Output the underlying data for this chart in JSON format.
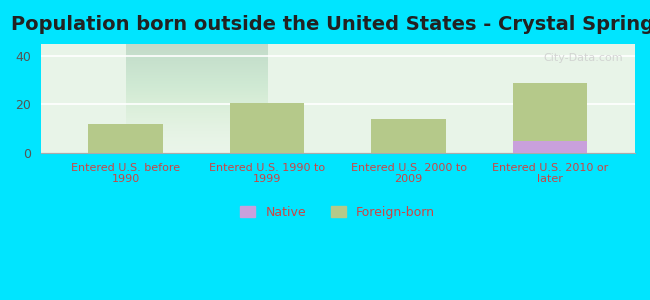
{
  "title": "Population born outside the United States - Crystal Springs",
  "categories": [
    "Entered U.S. before\n1990",
    "Entered U.S. 1990 to\n1999",
    "Entered U.S. 2000 to\n2009",
    "Entered U.S. 2010 or\nlater"
  ],
  "native_values": [
    0,
    0,
    0,
    5
  ],
  "foreign_values": [
    12,
    20.5,
    14,
    29
  ],
  "native_color": "#c9a0dc",
  "foreign_color": "#b5c98a",
  "background_outer": "#00e5ff",
  "background_inner_top": "#e8f5e9",
  "background_inner_bottom": "#f0f8f0",
  "ylim": [
    0,
    45
  ],
  "yticks": [
    0,
    20,
    40
  ],
  "title_fontsize": 14,
  "bar_width": 0.35,
  "legend_native": "Native",
  "legend_foreign": "Foreign-born",
  "watermark": "City-Data.com"
}
